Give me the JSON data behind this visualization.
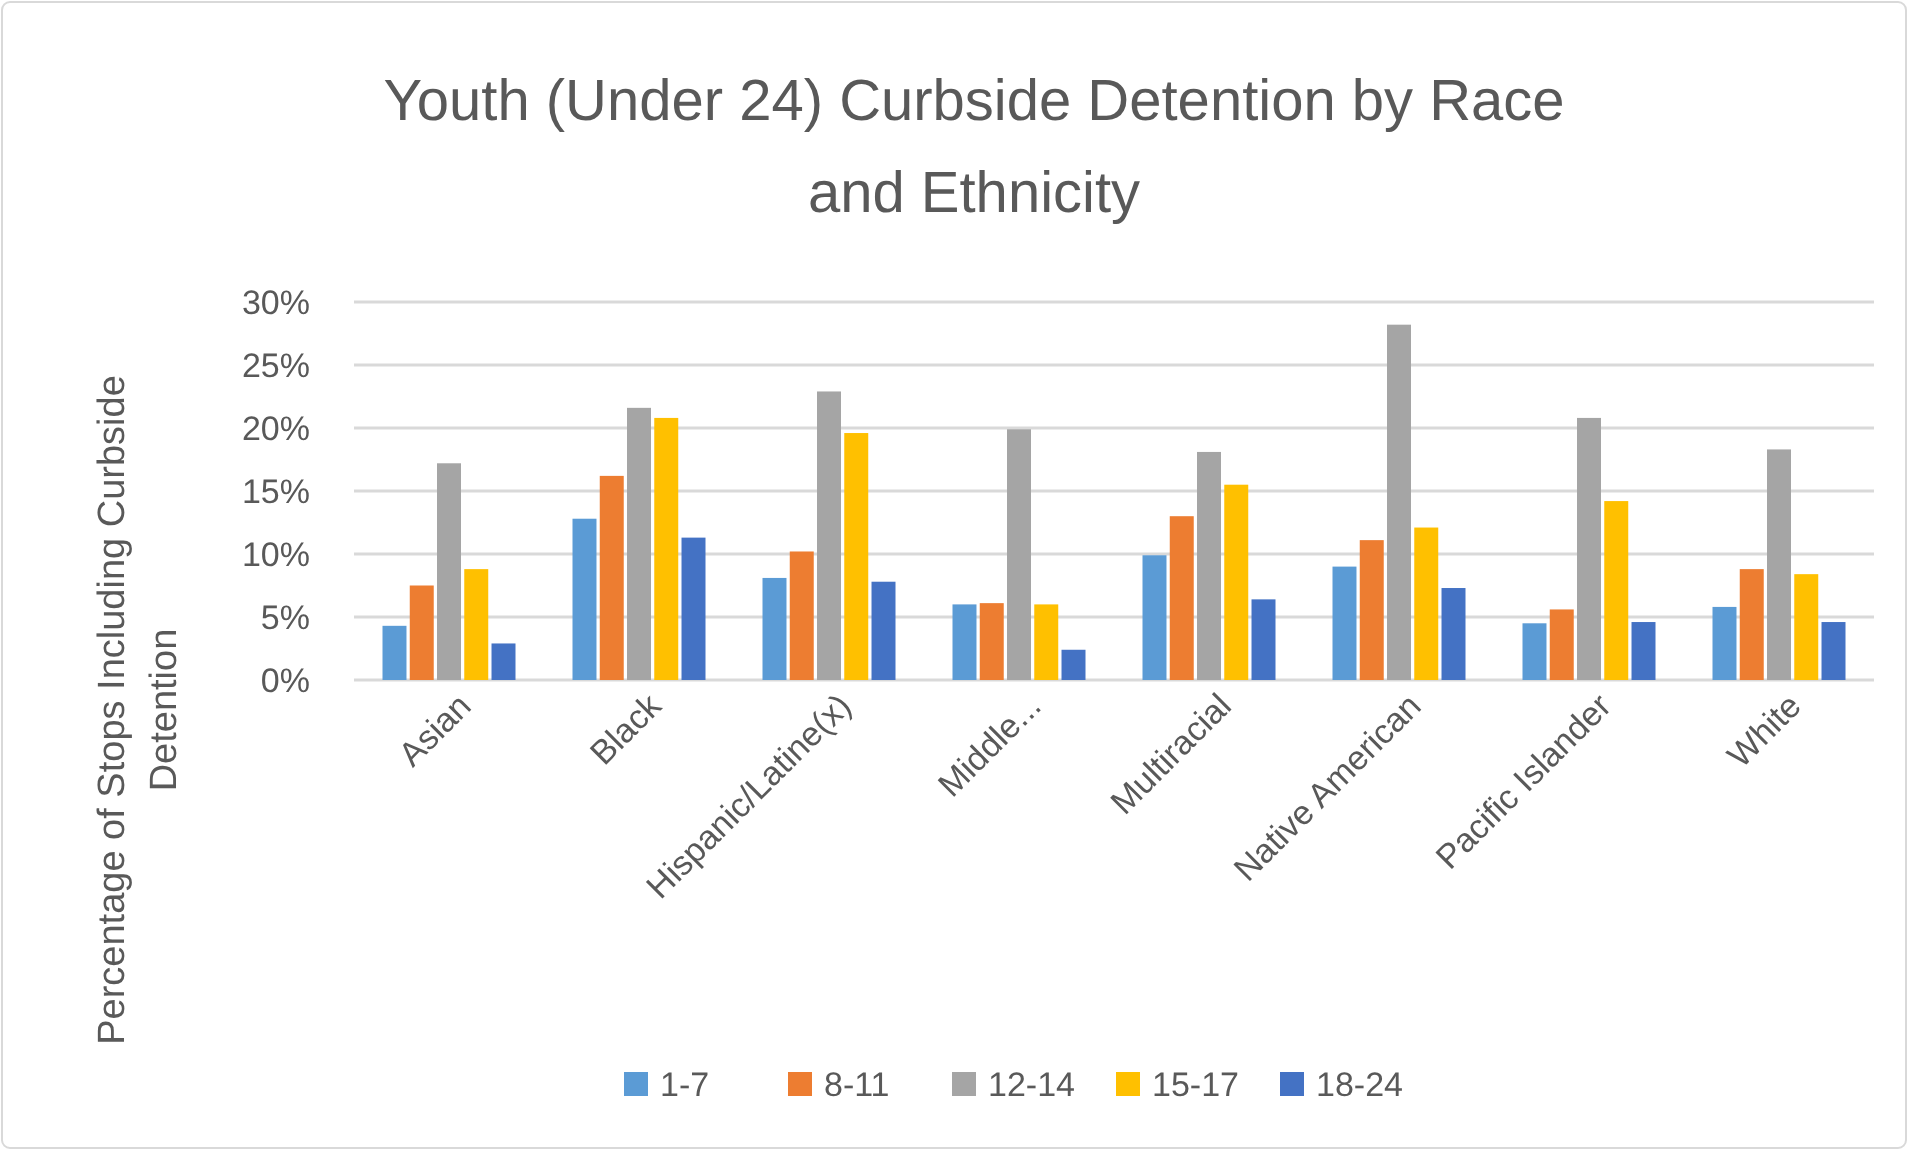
{
  "chart_data": {
    "type": "bar",
    "title": "Youth (Under 24) Curbside Detention by Race and Ethnicity",
    "ylabel": "Percentage of Stops Including Curbside Detention",
    "categories": [
      "Asian",
      "Black",
      "Hispanic/Latine(x)",
      "Middle...",
      "Multiracial",
      "Native American",
      "Pacific Islander",
      "White"
    ],
    "series": [
      {
        "name": "1-7",
        "color": "#5b9bd5",
        "values": [
          4.3,
          12.8,
          8.1,
          6.0,
          9.9,
          9.0,
          4.5,
          5.8
        ]
      },
      {
        "name": "8-11",
        "color": "#ed7d31",
        "values": [
          7.5,
          16.2,
          10.2,
          6.1,
          13.0,
          11.1,
          5.6,
          8.8
        ]
      },
      {
        "name": "12-14",
        "color": "#a5a5a5",
        "values": [
          17.2,
          21.6,
          22.9,
          19.9,
          18.1,
          28.2,
          20.8,
          18.3
        ]
      },
      {
        "name": "15-17",
        "color": "#ffc000",
        "values": [
          8.8,
          20.8,
          19.6,
          6.0,
          15.5,
          12.1,
          14.2,
          8.4
        ]
      },
      {
        "name": "18-24",
        "color": "#4472c4",
        "values": [
          2.9,
          11.3,
          7.8,
          2.4,
          6.4,
          7.3,
          4.6,
          4.6
        ]
      }
    ],
    "ylim": [
      0,
      30
    ],
    "yticks": [
      {
        "value": 0,
        "label": "0%"
      },
      {
        "value": 5,
        "label": "5%"
      },
      {
        "value": 10,
        "label": "10%"
      },
      {
        "value": 15,
        "label": "15%"
      },
      {
        "value": 20,
        "label": "20%"
      },
      {
        "value": 25,
        "label": "25%"
      },
      {
        "value": 30,
        "label": "30%"
      }
    ],
    "grid": "y",
    "legend": "bottom"
  }
}
